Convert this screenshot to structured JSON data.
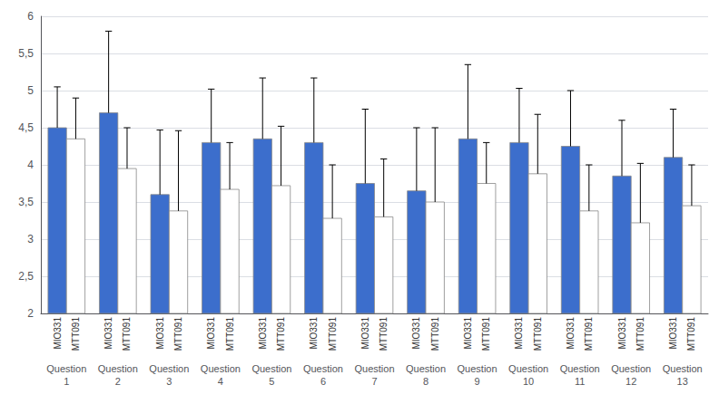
{
  "chart_data": {
    "type": "bar",
    "categories": [
      "Question\n1",
      "Question\n2",
      "Question\n3",
      "Question\n4",
      "Question\n5",
      "Question\n6",
      "Question\n7",
      "Question\n8",
      "Question\n9",
      "Question\n10",
      "Question\n11",
      "Question\n12",
      "Question\n13"
    ],
    "series": [
      {
        "name": "MIO331",
        "color": "#3c6ecc",
        "values": [
          4.5,
          4.7,
          3.6,
          4.3,
          4.35,
          4.3,
          3.75,
          3.65,
          4.35,
          4.3,
          4.25,
          3.85,
          4.1
        ],
        "errors": [
          0.55,
          1.1,
          0.87,
          0.72,
          0.82,
          0.87,
          1.0,
          0.85,
          1.0,
          0.73,
          0.75,
          0.75,
          0.65
        ]
      },
      {
        "name": "MTT091",
        "color": "#ffffff",
        "values": [
          4.35,
          3.95,
          3.38,
          3.67,
          3.72,
          3.28,
          3.3,
          3.5,
          3.75,
          3.88,
          3.38,
          3.22,
          3.45
        ],
        "errors": [
          0.55,
          0.55,
          1.08,
          0.63,
          0.8,
          0.72,
          0.78,
          1.0,
          0.55,
          0.8,
          0.62,
          0.8,
          0.55
        ]
      }
    ],
    "ylim": [
      2.0,
      6.0
    ],
    "yticks": [
      2,
      {
        "value": 2.5,
        "label": "2,5"
      },
      3,
      {
        "value": 3.5,
        "label": "3,5"
      },
      4,
      {
        "value": 4.5,
        "label": "4,5"
      },
      5,
      {
        "value": 5.5,
        "label": "5,5"
      },
      6
    ],
    "grid": true
  }
}
